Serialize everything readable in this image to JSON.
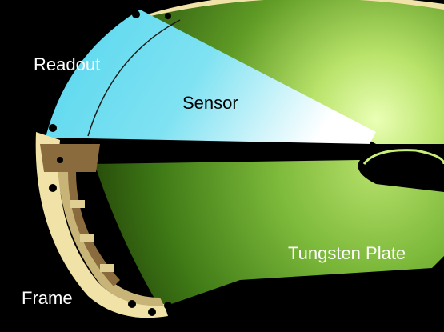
{
  "labels": {
    "readout": "Readout",
    "sensor": "Sensor",
    "tungsten_plate": "Tungsten Plate",
    "frame": "Frame"
  },
  "colors": {
    "background": "#000000",
    "frame": "#f1e3a7",
    "frame_shadow": "#b8a56a",
    "cork_layer": "#8a6b3d",
    "tungsten": "#4d8a1e",
    "tungsten_highlight": "#e8ffb0",
    "sensor": "#5ad8ec",
    "sensor_fade": "#ffffff",
    "label_light": "#ffffff",
    "label_dark": "#000000"
  }
}
